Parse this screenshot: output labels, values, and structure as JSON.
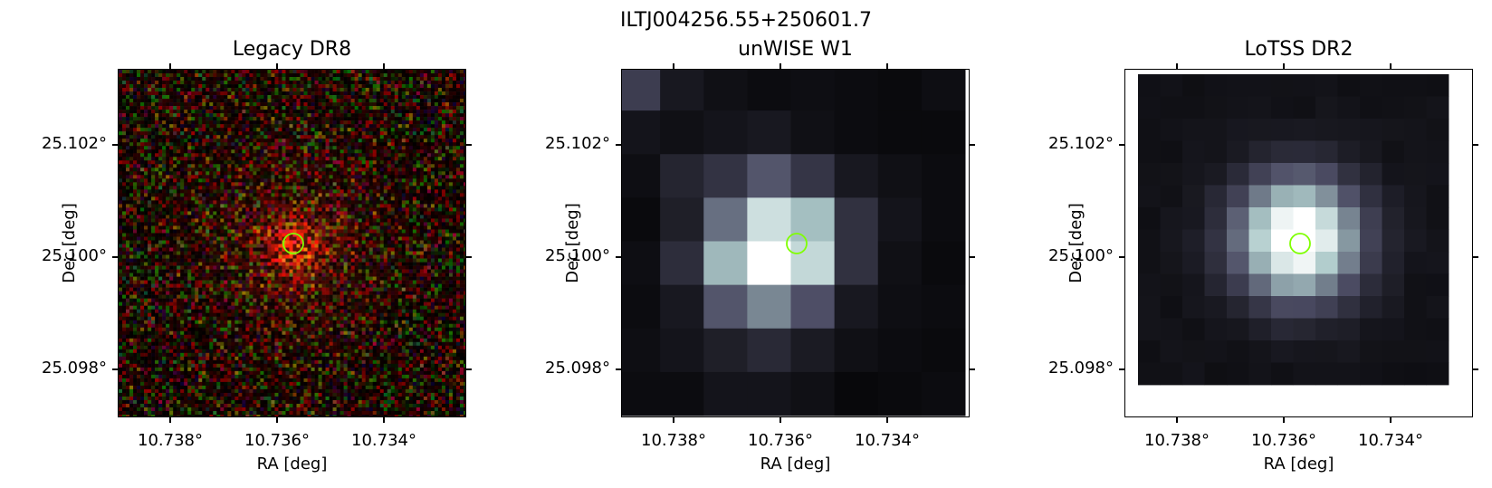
{
  "figure": {
    "title": "ILTJ004256.55+250601.7"
  },
  "panels": [
    {
      "title": "Legacy DR8",
      "xlabel": "RA [deg]",
      "ylabel": "Dec [deg]",
      "xticks": [
        "10.738°",
        "10.736°",
        "10.734°"
      ],
      "yticks": [
        "25.102°",
        "25.100°",
        "25.098°"
      ],
      "image_type": "rgb-noise"
    },
    {
      "title": "unWISE W1",
      "xlabel": "RA [deg]",
      "ylabel": "Dec [deg]",
      "xticks": [
        "10.738°",
        "10.736°",
        "10.734°"
      ],
      "yticks": [
        "25.102°",
        "25.100°",
        "25.098°"
      ],
      "image_type": "bone-coarse"
    },
    {
      "title": "LoTSS DR2",
      "xlabel": "RA [deg]",
      "ylabel": "Dec [deg]",
      "xticks": [
        "10.738°",
        "10.736°",
        "10.734°"
      ],
      "yticks": [
        "25.102°",
        "25.100°",
        "25.098°"
      ],
      "image_type": "bone-fine"
    }
  ],
  "marker": {
    "shape": "circle",
    "color": "#7fff00"
  },
  "axis_range": {
    "ra": [
      10.7393,
      10.7327
    ],
    "dec": [
      25.0975,
      25.1033
    ]
  }
}
